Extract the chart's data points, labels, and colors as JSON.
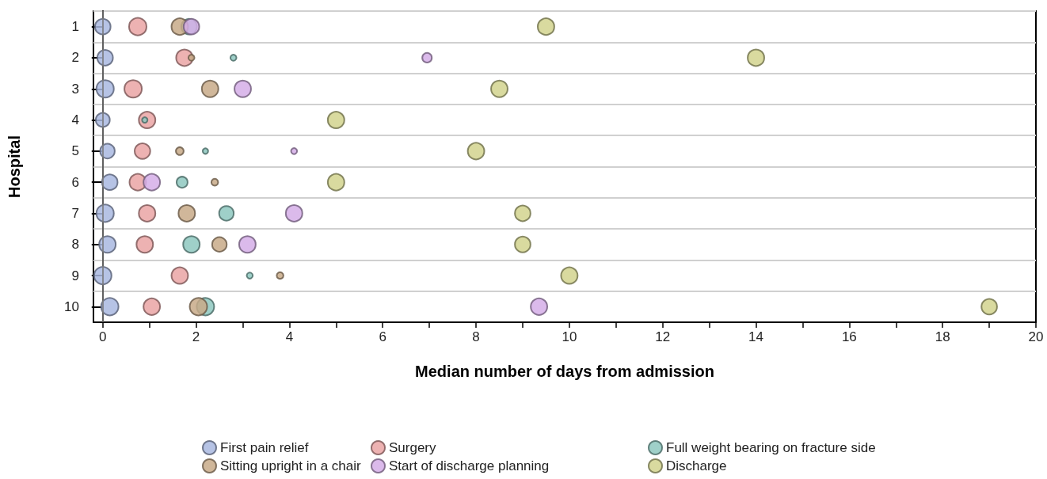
{
  "chart_data": {
    "type": "bubble",
    "orientation": "horizontal",
    "xlabel": "Median number of days from admission",
    "ylabel": "Hospital",
    "categories": [
      "1",
      "2",
      "3",
      "4",
      "5",
      "6",
      "7",
      "8",
      "9",
      "10"
    ],
    "xlim": [
      -0.2,
      20
    ],
    "xticks": [
      0,
      {
        "value": 1,
        "label": null
      },
      2,
      {
        "value": 3,
        "label": null
      },
      4,
      {
        "value": 5,
        "label": null
      },
      6,
      {
        "value": 7,
        "label": null
      },
      8,
      {
        "value": 9,
        "label": null
      },
      10,
      {
        "value": 11,
        "label": null
      },
      12,
      {
        "value": 13,
        "label": null
      },
      14,
      {
        "value": 15,
        "label": null
      },
      16,
      {
        "value": 17,
        "label": null
      },
      18,
      {
        "value": 19,
        "label": null
      },
      20
    ],
    "grid": "y",
    "legend": "bottom",
    "marker": "circle",
    "ref_lines": [
      {
        "axis": "x",
        "value": 0,
        "color": "#808080"
      }
    ],
    "series": [
      {
        "name": "First pain relief",
        "color": "#a9b8e0",
        "values": [
          0,
          0.05,
          0.05,
          0,
          0.1,
          0.15,
          0.05,
          0.1,
          0,
          0.15
        ],
        "sizes": [
          0.8,
          0.8,
          1,
          0.65,
          0.7,
          0.8,
          1,
          0.9,
          1,
          1
        ]
      },
      {
        "name": "Surgery",
        "color": "#eaa5a5",
        "values": [
          0.75,
          1.75,
          0.65,
          0.95,
          0.85,
          0.75,
          0.95,
          0.9,
          1.65,
          1.05
        ],
        "sizes": [
          1,
          0.9,
          1,
          0.9,
          0.8,
          0.9,
          0.9,
          0.9,
          0.9,
          0.9
        ]
      },
      {
        "name": "Full weight bearing on fracture side",
        "color": "#8ec8c0",
        "values": [
          1.85,
          2.8,
          null,
          0.9,
          2.2,
          1.7,
          2.65,
          1.9,
          3.15,
          2.2
        ],
        "sizes": [
          0.8,
          0.12,
          null,
          0.1,
          0.1,
          0.4,
          0.7,
          0.9,
          0.12,
          1
        ]
      },
      {
        "name": "Sitting upright in a chair",
        "color": "#c8aa88",
        "values": [
          1.65,
          1.9,
          2.3,
          null,
          1.65,
          2.4,
          1.8,
          2.5,
          3.8,
          2.05
        ],
        "sizes": [
          0.9,
          0.12,
          0.9,
          null,
          0.2,
          0.15,
          0.9,
          0.7,
          0.15,
          1
        ]
      },
      {
        "name": "Start of discharge planning",
        "color": "#d5aee8",
        "values": [
          1.9,
          6.95,
          3.0,
          null,
          4.1,
          1.05,
          4.1,
          3.1,
          null,
          9.35
        ],
        "sizes": [
          0.8,
          0.3,
          0.9,
          null,
          0.12,
          0.9,
          0.9,
          0.9,
          null,
          0.9
        ]
      },
      {
        "name": "Discharge",
        "color": "#d2d48e",
        "values": [
          9.5,
          14,
          8.5,
          5,
          8,
          5,
          9,
          9,
          10,
          19
        ],
        "sizes": [
          0.9,
          0.9,
          0.9,
          0.9,
          0.9,
          0.9,
          0.8,
          0.8,
          0.9,
          0.8
        ]
      }
    ]
  }
}
